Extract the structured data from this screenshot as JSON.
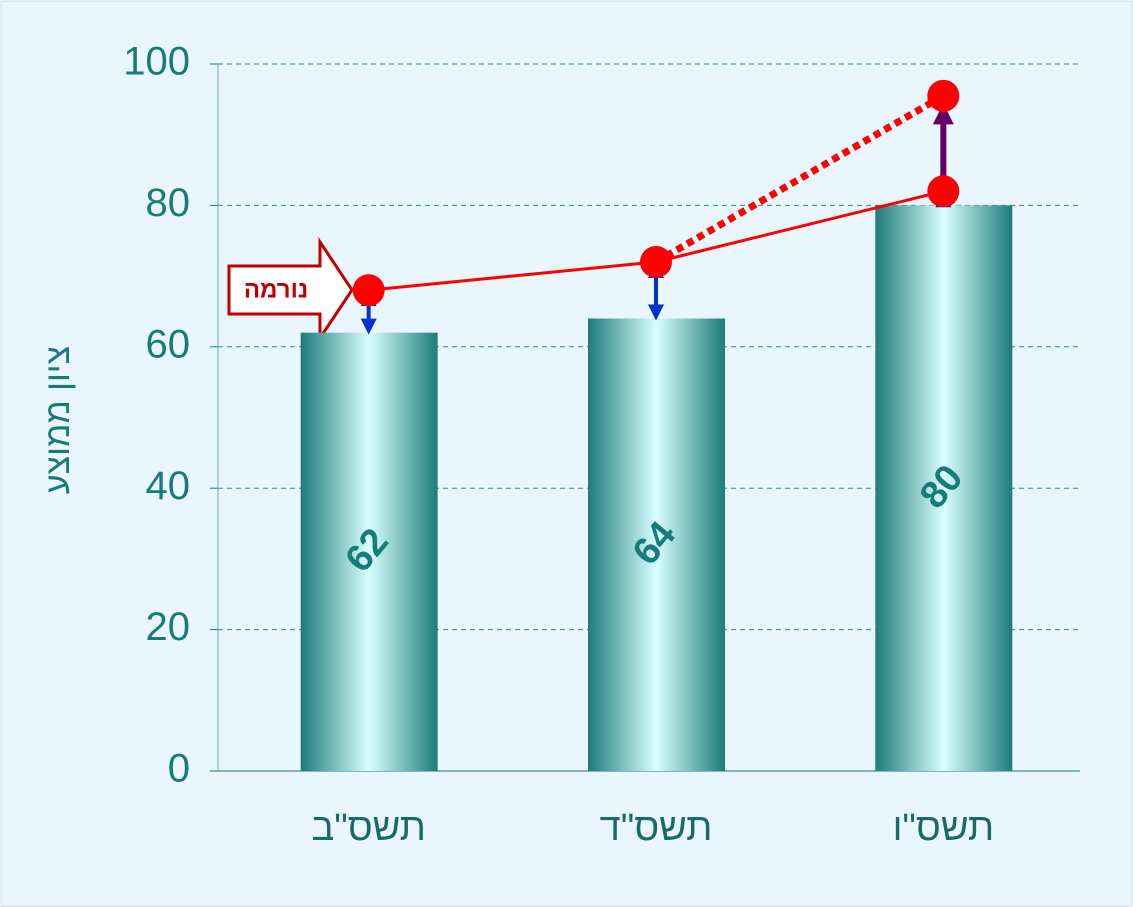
{
  "chart_data": {
    "type": "bar",
    "categories": [
      "תשס\"ב",
      "תשס\"ד",
      "תשס\"ו"
    ],
    "values": [
      62,
      64,
      80
    ],
    "color": "#1e7b7b",
    "ylabel": "ציון ממוצע",
    "ylim": [
      0,
      100
    ],
    "yticks": [
      0,
      20,
      40,
      60,
      80,
      100
    ],
    "grid": true,
    "lines": [
      {
        "color": "#ff0000",
        "style": "solid",
        "values": [
          68,
          72,
          82
        ]
      },
      {
        "color": "#ff0000",
        "style": "dotted",
        "values": [
          null,
          72,
          95.5
        ]
      }
    ],
    "gap_arrow_color": "#0033cc",
    "rise_arrow_color": "#660066",
    "annotation": "נורמה"
  }
}
